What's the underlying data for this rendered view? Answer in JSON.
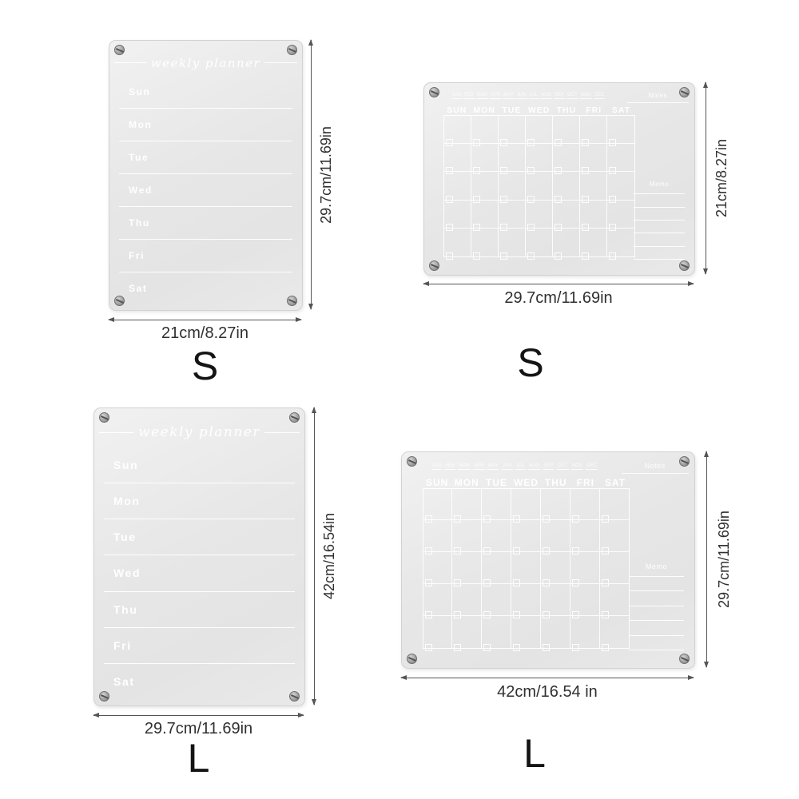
{
  "colors": {
    "background": "#ffffff",
    "board_fill": "#e8e8e8",
    "board_markings": "#ffffff",
    "annotation": "#3a3a3a"
  },
  "products": {
    "weekly": {
      "title": "weekly planner",
      "days": [
        "Sun",
        "Mon",
        "Tue",
        "Wed",
        "Thu",
        "Fri",
        "Sat"
      ]
    },
    "monthly": {
      "months": [
        "JAN",
        "FEB",
        "MAR",
        "APR",
        "MAY",
        "JUN",
        "JUL",
        "AUG",
        "SEP",
        "OCT",
        "NOV",
        "DEC"
      ],
      "day_headers": [
        "SUN",
        "MON",
        "TUE",
        "WED",
        "THU",
        "FRI",
        "SAT"
      ],
      "notes_label": "Notes",
      "memo_label": "Memo",
      "grid_rows": 5,
      "grid_cols": 7,
      "memo_line_count": 6
    }
  },
  "panels": [
    {
      "size_label": "S",
      "width_label": "21cm/8.27in",
      "height_label": "29.7cm/11.69in"
    },
    {
      "size_label": "S",
      "width_label": "29.7cm/11.69in",
      "height_label": "21cm/8.27in"
    },
    {
      "size_label": "L",
      "width_label": "29.7cm/11.69in",
      "height_label": "42cm/16.54in"
    },
    {
      "size_label": "L",
      "width_label": "42cm/16.54 in",
      "height_label": "29.7cm/11.69in"
    }
  ]
}
